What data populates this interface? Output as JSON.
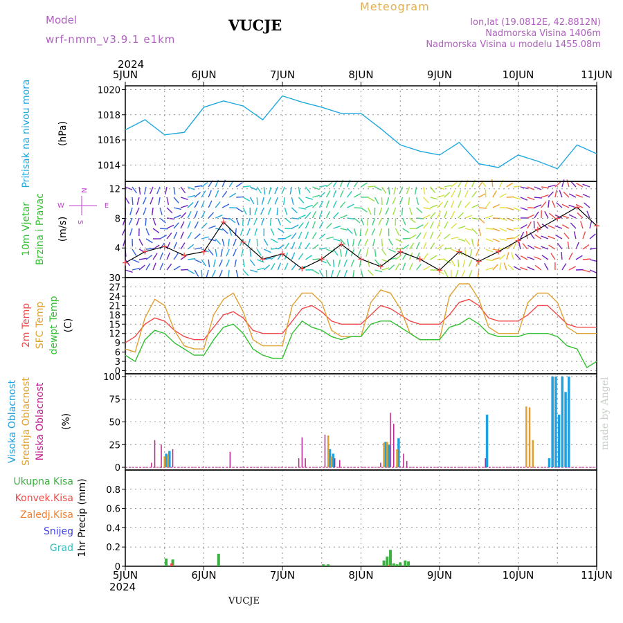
{
  "header": {
    "model_label": "Model",
    "model_name": "wrf-nmm_v3.9.1  e1km",
    "station": "VUCJE",
    "product": "Meteogram",
    "lonlat": "lon,lat (19.0812E, 42.8812N)",
    "elevation": "Nadmorska Visina 1406m",
    "model_elevation": "Nadmorska Visina u modelu 1455.08m",
    "footer_station": "VUCJE",
    "credit": "made by Angel"
  },
  "colors": {
    "pressure": "#1fa8e0",
    "temp2m": "#f04848",
    "sfc_temp": "#e0a030",
    "dewpt": "#30c030",
    "high_cloud": "#1fa0e0",
    "mid_cloud": "#e0a030",
    "low_cloud": "#c02090",
    "total_precip": "#3cb040",
    "conv_precip": "#f04848",
    "frozen_precip": "#f08030",
    "snow": "#4040e0",
    "graupel": "#30c0c0",
    "header_purple": "#b060c0",
    "header_gold": "#e0b050",
    "wind_speed_line": "#000000"
  },
  "chart_data": [
    {
      "type": "line",
      "panel": "pressure",
      "ylabel_rotated": "Pritisak na nivou mora",
      "unit": "(hPa)",
      "x_range": [
        "2024-06-05 00:00",
        "2024-06-11 00:00"
      ],
      "x_ticks": [
        "5JUN",
        "6JUN",
        "7JUN",
        "8JUN",
        "9JUN",
        "10JUN",
        "11JUN"
      ],
      "year": "2024",
      "ylim": [
        1012.7,
        1020.3
      ],
      "yticks": [
        "1014",
        "1016",
        "1018",
        "1020"
      ],
      "grid": true,
      "series": [
        {
          "key": "slp",
          "x": [
            0,
            6,
            12,
            18,
            24,
            30,
            36,
            42,
            48,
            54,
            60,
            66,
            72,
            78,
            84,
            90,
            96,
            102,
            108,
            114,
            120,
            126,
            132,
            138,
            144
          ],
          "values": [
            1016.8,
            1017.6,
            1016.4,
            1016.6,
            1018.6,
            1019.1,
            1018.7,
            1017.6,
            1019.5,
            1019.0,
            1018.6,
            1018.1,
            1018.1,
            1016.9,
            1015.6,
            1015.1,
            1014.8,
            1015.8,
            1014.1,
            1013.8,
            1014.8,
            1014.3,
            1013.7,
            1015.6,
            1014.9
          ]
        }
      ]
    },
    {
      "type": "line",
      "panel": "wind",
      "ylabel_rotated_1": "10m Vjetar",
      "ylabel_rotated_2": "Brzina i Pravac",
      "unit": "(m/s)",
      "compass": {
        "north": "N",
        "west": "W",
        "east": "E",
        "south": "S"
      },
      "ylim": [
        0,
        13
      ],
      "yticks": [
        "0",
        "4",
        "8",
        "12"
      ],
      "series": [
        {
          "key": "wind_speed",
          "x": [
            0,
            6,
            12,
            18,
            24,
            30,
            36,
            42,
            48,
            54,
            60,
            66,
            72,
            78,
            84,
            90,
            96,
            102,
            108,
            114,
            120,
            126,
            132,
            138,
            144
          ],
          "values": [
            2.0,
            3.5,
            4.2,
            3.0,
            3.5,
            7.5,
            4.8,
            2.5,
            3.2,
            1.2,
            2.5,
            4.5,
            2.5,
            1.5,
            3.5,
            2.5,
            1.0,
            3.5,
            2.2,
            3.5,
            5.0,
            6.5,
            8.0,
            9.5,
            7.0
          ]
        }
      ]
    },
    {
      "type": "line",
      "panel": "temperature",
      "ylabel_rotated_1": "2m Temp",
      "ylabel_rotated_2": "SFC Temp",
      "ylabel_rotated_3": "dewpt Temp",
      "unit": "(C)",
      "ylim": [
        -1,
        30
      ],
      "yticks": [
        "0",
        "3",
        "6",
        "9",
        "12",
        "15",
        "18",
        "21",
        "24",
        "27",
        "30"
      ],
      "series": [
        {
          "key": "t2m",
          "x": [
            0,
            3,
            6,
            9,
            12,
            15,
            18,
            21,
            24,
            27,
            30,
            33,
            36,
            39,
            42,
            45,
            48,
            51,
            54,
            57,
            60,
            63,
            66,
            69,
            72,
            75,
            78,
            81,
            84,
            87,
            90,
            93,
            96,
            99,
            102,
            105,
            108,
            111,
            114,
            117,
            120,
            123,
            126,
            129,
            132,
            135,
            138,
            141,
            144
          ],
          "values": [
            9,
            11,
            15,
            17,
            16,
            13,
            11,
            10,
            10,
            14,
            18,
            19,
            17,
            13,
            12,
            12,
            12,
            16,
            20,
            21,
            19,
            16,
            15,
            15,
            15,
            18,
            21,
            20,
            18,
            16,
            15,
            15,
            15,
            18,
            22,
            23,
            21,
            17,
            16,
            16,
            16,
            18,
            21,
            21,
            18,
            15,
            14,
            14,
            14
          ]
        },
        {
          "key": "sfc",
          "x": [
            0,
            3,
            6,
            9,
            12,
            15,
            18,
            21,
            24,
            27,
            30,
            33,
            36,
            39,
            42,
            45,
            48,
            51,
            54,
            57,
            60,
            63,
            66,
            69,
            72,
            75,
            78,
            81,
            84,
            87,
            90,
            93,
            96,
            99,
            102,
            105,
            108,
            111,
            114,
            117,
            120,
            123,
            126,
            129,
            132,
            135,
            138,
            141,
            144
          ],
          "values": [
            7,
            6,
            17,
            23,
            21,
            13,
            8,
            7,
            7,
            18,
            23,
            25,
            19,
            10,
            8,
            8,
            8,
            21,
            25,
            25,
            22,
            13,
            11,
            11,
            11,
            22,
            26,
            25,
            20,
            12,
            10,
            10,
            10,
            24,
            28,
            28,
            23,
            14,
            12,
            12,
            12,
            22,
            25,
            25,
            22,
            14,
            12,
            12,
            12
          ]
        },
        {
          "key": "dewpt",
          "x": [
            0,
            3,
            6,
            9,
            12,
            15,
            18,
            21,
            24,
            27,
            30,
            33,
            36,
            39,
            42,
            45,
            48,
            51,
            54,
            57,
            60,
            63,
            66,
            69,
            72,
            75,
            78,
            81,
            84,
            87,
            90,
            93,
            96,
            99,
            102,
            105,
            108,
            111,
            114,
            117,
            120,
            123,
            126,
            129,
            132,
            135,
            138,
            141,
            144
          ],
          "values": [
            5,
            3,
            10,
            13,
            12,
            9,
            7,
            5,
            5,
            10,
            14,
            15,
            12,
            7,
            5,
            4,
            4,
            12,
            16,
            14,
            13,
            11,
            10,
            11,
            11,
            15,
            16,
            16,
            14,
            12,
            10,
            10,
            10,
            14,
            15,
            17,
            15,
            12,
            11,
            11,
            11,
            12,
            12,
            12,
            11,
            8,
            7,
            1,
            3
          ]
        }
      ]
    },
    {
      "type": "bar",
      "panel": "cloud",
      "ylabel_rotated_1": "Visoka Oblacnost",
      "ylabel_rotated_2": "Srednja Oblacnost",
      "ylabel_rotated_3": "Niska Oblacnost",
      "unit": "(%)",
      "ylim": [
        -3,
        103
      ],
      "yticks": [
        "0",
        "25",
        "50",
        "75",
        "100"
      ],
      "series": [
        {
          "key": "high",
          "points": [
            [
              12.5,
              15
            ],
            [
              13.5,
              18
            ],
            [
              62.5,
              20
            ],
            [
              63.5,
              15
            ],
            [
              79.5,
              28
            ],
            [
              80.5,
              25
            ],
            [
              83.5,
              32
            ],
            [
              110.5,
              58
            ],
            [
              129.5,
              10
            ],
            [
              130.5,
              100
            ],
            [
              131.5,
              100
            ],
            [
              132.5,
              58
            ],
            [
              133.5,
              100
            ],
            [
              134.5,
              83
            ],
            [
              135.5,
              100
            ]
          ]
        },
        {
          "key": "mid",
          "points": [
            [
              12.0,
              12
            ],
            [
              13.0,
              14
            ],
            [
              62.0,
              35
            ],
            [
              63.0,
              12
            ],
            [
              79.0,
              27
            ],
            [
              80.0,
              28
            ],
            [
              83.0,
              20
            ],
            [
              122.5,
              67
            ],
            [
              123.5,
              66
            ],
            [
              124.5,
              30
            ]
          ]
        },
        {
          "key": "low",
          "points": [
            [
              8,
              5
            ],
            [
              9,
              30
            ],
            [
              11,
              25
            ],
            [
              14.5,
              20
            ],
            [
              32,
              17
            ],
            [
              53,
              10
            ],
            [
              54,
              33
            ],
            [
              55,
              10
            ],
            [
              61,
              36
            ],
            [
              64,
              10
            ],
            [
              65.5,
              8
            ],
            [
              78,
              5
            ],
            [
              81,
              60
            ],
            [
              82,
              48
            ],
            [
              85,
              15
            ],
            [
              86,
              7
            ],
            [
              110,
              10
            ]
          ]
        }
      ]
    },
    {
      "type": "bar",
      "panel": "precip",
      "ylabel_rotated": "1hr Precip (mm)",
      "legend_labels": [
        "Ukupna  Kisa",
        "Konvek.Kisa",
        "Zaledj.Kisa",
        "Snijeg",
        "Grad"
      ],
      "ylim": [
        0,
        1
      ],
      "yticks": [
        "0",
        "0.2",
        "0.4",
        "0.6",
        "0.8"
      ],
      "series": [
        {
          "key": "total",
          "points": [
            [
              12.5,
              0.08
            ],
            [
              14.5,
              0.07
            ],
            [
              28.5,
              0.13
            ],
            [
              60.5,
              0.02
            ],
            [
              62,
              0.02
            ],
            [
              79,
              0.06
            ],
            [
              80,
              0.1
            ],
            [
              81,
              0.17
            ],
            [
              82,
              0.03
            ],
            [
              83,
              0.02
            ],
            [
              84,
              0.04
            ],
            [
              85.5,
              0.06
            ],
            [
              86.5,
              0.05
            ]
          ]
        },
        {
          "key": "conv",
          "points": [
            [
              14.2,
              0.03
            ],
            [
              80.5,
              0.01
            ]
          ]
        }
      ]
    }
  ]
}
